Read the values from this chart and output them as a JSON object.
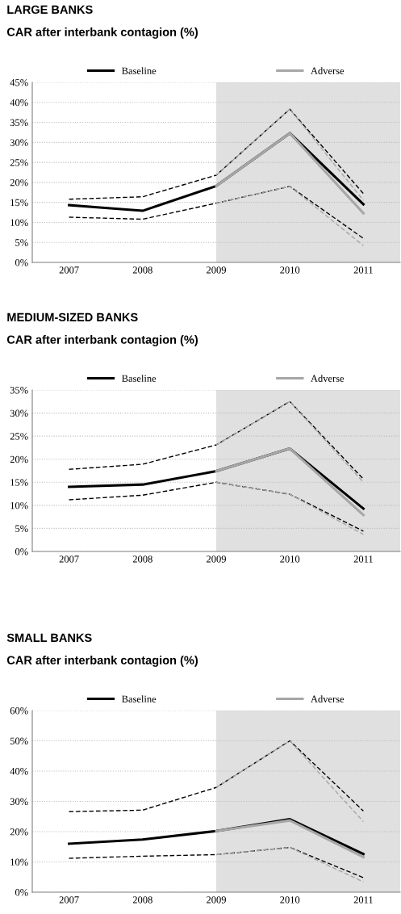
{
  "chart_data": [
    {
      "type": "line",
      "title": "LARGE BANKS",
      "subtitle": "CAR after interbank contagion (%)",
      "xlim": [
        2006.5,
        2011.5
      ],
      "xticks": [
        2007,
        2008,
        2009,
        2010,
        2011
      ],
      "ylim": [
        0,
        45
      ],
      "yticks": [
        {
          "value": 0,
          "label": "0%"
        },
        {
          "value": 5,
          "label": "5%"
        },
        {
          "value": 10,
          "label": "10%"
        },
        {
          "value": 15,
          "label": "15%"
        },
        {
          "value": 20,
          "label": "20%"
        },
        {
          "value": 25,
          "label": "25%"
        },
        {
          "value": 30,
          "label": "30%"
        },
        {
          "value": 35,
          "label": "35%"
        },
        {
          "value": 40,
          "label": "40%"
        },
        {
          "value": 45,
          "label": "45%"
        }
      ],
      "grid": "y",
      "legend": "top",
      "bands": [
        {
          "axis": "x",
          "from": 2009,
          "to": 2011.5,
          "color": "#e0e0e0"
        }
      ],
      "series": [
        {
          "color": "#000000",
          "line_style": "dashed",
          "x": [
            2007,
            2008,
            2009,
            2010,
            2011
          ],
          "values": [
            15.8,
            16.4,
            21.8,
            38.3,
            17.2
          ]
        },
        {
          "color": "#000000",
          "line_style": "dashed",
          "x": [
            2007,
            2008,
            2009,
            2010,
            2011
          ],
          "values": [
            11.3,
            10.8,
            14.8,
            19.0,
            6.0
          ]
        },
        {
          "color": "#a6a6a6",
          "line_style": "dashed",
          "x": [
            2009,
            2010,
            2011
          ],
          "values": [
            21.8,
            38.3,
            15.5
          ]
        },
        {
          "color": "#a6a6a6",
          "line_style": "dashed",
          "x": [
            2009,
            2010,
            2011
          ],
          "values": [
            14.8,
            19.0,
            4.2
          ]
        },
        {
          "name": "Baseline",
          "color": "#000000",
          "line_style": "solid",
          "x": [
            2007,
            2008,
            2009,
            2010,
            2011
          ],
          "values": [
            14.3,
            12.9,
            19.1,
            32.3,
            14.5
          ]
        },
        {
          "name": "Adverse",
          "color": "#a6a6a6",
          "line_style": "solid",
          "x": [
            2009,
            2010,
            2011
          ],
          "values": [
            19.1,
            32.3,
            12.3
          ]
        }
      ]
    },
    {
      "type": "line",
      "title": "MEDIUM-SIZED BANKS",
      "subtitle": "CAR after interbank contagion (%)",
      "xlim": [
        2006.5,
        2011.5
      ],
      "xticks": [
        2007,
        2008,
        2009,
        2010,
        2011
      ],
      "ylim": [
        0,
        35
      ],
      "yticks": [
        {
          "value": 0,
          "label": "0%"
        },
        {
          "value": 5,
          "label": "5%"
        },
        {
          "value": 10,
          "label": "10%"
        },
        {
          "value": 15,
          "label": "15%"
        },
        {
          "value": 20,
          "label": "20%"
        },
        {
          "value": 25,
          "label": "25%"
        },
        {
          "value": 30,
          "label": "30%"
        },
        {
          "value": 35,
          "label": "35%"
        }
      ],
      "grid": "y",
      "legend": "top",
      "bands": [
        {
          "axis": "x",
          "from": 2009,
          "to": 2011.5,
          "color": "#e0e0e0"
        }
      ],
      "series": [
        {
          "color": "#000000",
          "line_style": "dashed",
          "x": [
            2007,
            2008,
            2009,
            2010,
            2011
          ],
          "values": [
            17.8,
            18.9,
            23.1,
            32.5,
            15.7
          ]
        },
        {
          "color": "#000000",
          "line_style": "dashed",
          "x": [
            2007,
            2008,
            2009,
            2010,
            2011
          ],
          "values": [
            11.2,
            12.2,
            15.0,
            12.4,
            4.4
          ]
        },
        {
          "color": "#a6a6a6",
          "line_style": "dashed",
          "x": [
            2009,
            2010,
            2011
          ],
          "values": [
            23.1,
            32.5,
            15.0
          ]
        },
        {
          "color": "#a6a6a6",
          "line_style": "dashed",
          "x": [
            2009,
            2010,
            2011
          ],
          "values": [
            15.0,
            12.4,
            3.7
          ]
        },
        {
          "name": "Baseline",
          "color": "#000000",
          "line_style": "solid",
          "x": [
            2007,
            2008,
            2009,
            2010,
            2011
          ],
          "values": [
            14.0,
            14.5,
            17.4,
            22.3,
            9.3
          ]
        },
        {
          "name": "Adverse",
          "color": "#a6a6a6",
          "line_style": "solid",
          "x": [
            2009,
            2010,
            2011
          ],
          "values": [
            17.4,
            22.3,
            7.9
          ]
        }
      ]
    },
    {
      "type": "line",
      "title": "SMALL BANKS",
      "subtitle": "CAR after interbank contagion (%)",
      "xlim": [
        2006.5,
        2011.5
      ],
      "xticks": [
        2007,
        2008,
        2009,
        2010,
        2011
      ],
      "ylim": [
        0,
        60
      ],
      "yticks": [
        {
          "value": 0,
          "label": "0%"
        },
        {
          "value": 10,
          "label": "10%"
        },
        {
          "value": 20,
          "label": "20%"
        },
        {
          "value": 30,
          "label": "30%"
        },
        {
          "value": 40,
          "label": "40%"
        },
        {
          "value": 50,
          "label": "50%"
        },
        {
          "value": 60,
          "label": "60%"
        }
      ],
      "grid": "y",
      "legend": "top",
      "bands": [
        {
          "axis": "x",
          "from": 2009,
          "to": 2011.5,
          "color": "#e0e0e0"
        }
      ],
      "series": [
        {
          "color": "#000000",
          "line_style": "dashed",
          "x": [
            2007,
            2008,
            2009,
            2010,
            2011
          ],
          "values": [
            26.6,
            27.1,
            34.6,
            50.0,
            26.8
          ]
        },
        {
          "color": "#000000",
          "line_style": "dashed",
          "x": [
            2007,
            2008,
            2009,
            2010,
            2011
          ],
          "values": [
            11.2,
            11.9,
            12.4,
            14.8,
            4.8
          ]
        },
        {
          "color": "#a6a6a6",
          "line_style": "dashed",
          "x": [
            2009,
            2010,
            2011
          ],
          "values": [
            34.6,
            50.0,
            23.3
          ]
        },
        {
          "color": "#a6a6a6",
          "line_style": "dashed",
          "x": [
            2009,
            2010,
            2011
          ],
          "values": [
            12.4,
            14.8,
            3.4
          ]
        },
        {
          "name": "Baseline",
          "color": "#000000",
          "line_style": "solid",
          "x": [
            2007,
            2008,
            2009,
            2010,
            2011
          ],
          "values": [
            16.0,
            17.4,
            20.2,
            24.1,
            12.6
          ]
        },
        {
          "name": "Adverse",
          "color": "#a6a6a6",
          "line_style": "solid",
          "x": [
            2009,
            2010,
            2011
          ],
          "values": [
            20.2,
            23.7,
            11.6
          ]
        }
      ]
    }
  ]
}
